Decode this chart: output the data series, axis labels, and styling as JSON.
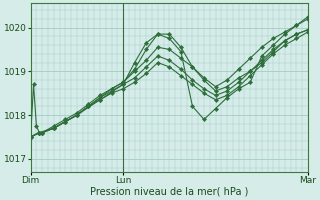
{
  "xlabel": "Pression niveau de la mer( hPa )",
  "bg_color": "#d5ece9",
  "grid_color": "#aacfc9",
  "line_color": "#2d6e3a",
  "marker_color": "#2d6e3a",
  "yticks": [
    1017,
    1018,
    1019,
    1020
  ],
  "ylim": [
    1016.7,
    1020.55
  ],
  "xlim": [
    0,
    48
  ],
  "xtick_positions": [
    0,
    16,
    48
  ],
  "xtick_labels": [
    "Dim",
    "Lun",
    "Mar"
  ],
  "vline_x": 16,
  "series": [
    [
      0.0,
      1017.5,
      0.5,
      1018.7,
      1.0,
      1017.75,
      1.5,
      1017.6,
      2.0,
      1017.6,
      4.0,
      1017.75,
      6.0,
      1017.9,
      8.0,
      1018.05,
      10.0,
      1018.25,
      12.0,
      1018.45,
      14.0,
      1018.6,
      16.0,
      1018.75,
      18.0,
      1019.05,
      20.0,
      1019.5,
      22.0,
      1019.85,
      24.0,
      1019.85,
      26.0,
      1019.55,
      28.0,
      1019.1,
      30.0,
      1018.8,
      32.0,
      1018.55,
      34.0,
      1018.65,
      36.0,
      1018.85,
      38.0,
      1019.0,
      40.0,
      1019.2,
      42.0,
      1019.45,
      44.0,
      1019.7,
      46.0,
      1019.85,
      48.0,
      1019.95
    ],
    [
      0.0,
      1017.5,
      1.5,
      1017.6,
      2.0,
      1017.6,
      4.0,
      1017.7,
      6.0,
      1017.85,
      8.0,
      1018.0,
      10.0,
      1018.2,
      12.0,
      1018.4,
      14.0,
      1018.6,
      16.0,
      1018.75,
      18.0,
      1019.0,
      20.0,
      1019.25,
      22.0,
      1019.55,
      24.0,
      1019.5,
      26.0,
      1019.3,
      28.0,
      1019.1,
      30.0,
      1018.85,
      32.0,
      1018.65,
      34.0,
      1018.8,
      36.0,
      1019.05,
      38.0,
      1019.3,
      40.0,
      1019.55,
      42.0,
      1019.75,
      44.0,
      1019.9,
      46.0,
      1020.05,
      48.0,
      1020.2
    ],
    [
      0.0,
      1017.5,
      1.5,
      1017.6,
      2.0,
      1017.6,
      4.0,
      1017.7,
      6.0,
      1017.85,
      8.0,
      1018.0,
      10.0,
      1018.2,
      12.0,
      1018.4,
      14.0,
      1018.55,
      16.0,
      1018.7,
      18.0,
      1018.85,
      20.0,
      1019.1,
      22.0,
      1019.35,
      24.0,
      1019.25,
      26.0,
      1019.05,
      28.0,
      1018.8,
      30.0,
      1018.6,
      32.0,
      1018.45,
      34.0,
      1018.55,
      36.0,
      1018.75,
      38.0,
      1019.0,
      40.0,
      1019.25,
      42.0,
      1019.5,
      44.0,
      1019.7,
      46.0,
      1019.85,
      48.0,
      1019.95
    ],
    [
      0.0,
      1017.5,
      1.5,
      1017.6,
      2.0,
      1017.6,
      4.0,
      1017.7,
      6.0,
      1017.85,
      8.0,
      1018.0,
      10.0,
      1018.2,
      12.0,
      1018.35,
      14.0,
      1018.5,
      16.0,
      1018.6,
      18.0,
      1018.75,
      20.0,
      1018.95,
      22.0,
      1019.2,
      24.0,
      1019.1,
      26.0,
      1018.9,
      28.0,
      1018.7,
      30.0,
      1018.5,
      32.0,
      1018.35,
      34.0,
      1018.45,
      36.0,
      1018.65,
      38.0,
      1018.9,
      40.0,
      1019.15,
      42.0,
      1019.4,
      44.0,
      1019.6,
      46.0,
      1019.75,
      48.0,
      1019.9
    ],
    [
      0.0,
      1017.5,
      1.5,
      1017.6,
      4.0,
      1017.7,
      8.0,
      1018.0,
      12.0,
      1018.35,
      16.0,
      1018.7,
      18.0,
      1019.2,
      20.0,
      1019.65,
      22.0,
      1019.85,
      24.0,
      1019.75,
      26.0,
      1019.45,
      28.0,
      1018.2,
      30.0,
      1017.9,
      32.0,
      1018.15,
      34.0,
      1018.4,
      36.0,
      1018.6,
      38.0,
      1018.75,
      40.0,
      1019.35,
      42.0,
      1019.6,
      44.0,
      1019.85,
      46.0,
      1020.05,
      48.0,
      1020.25
    ]
  ]
}
